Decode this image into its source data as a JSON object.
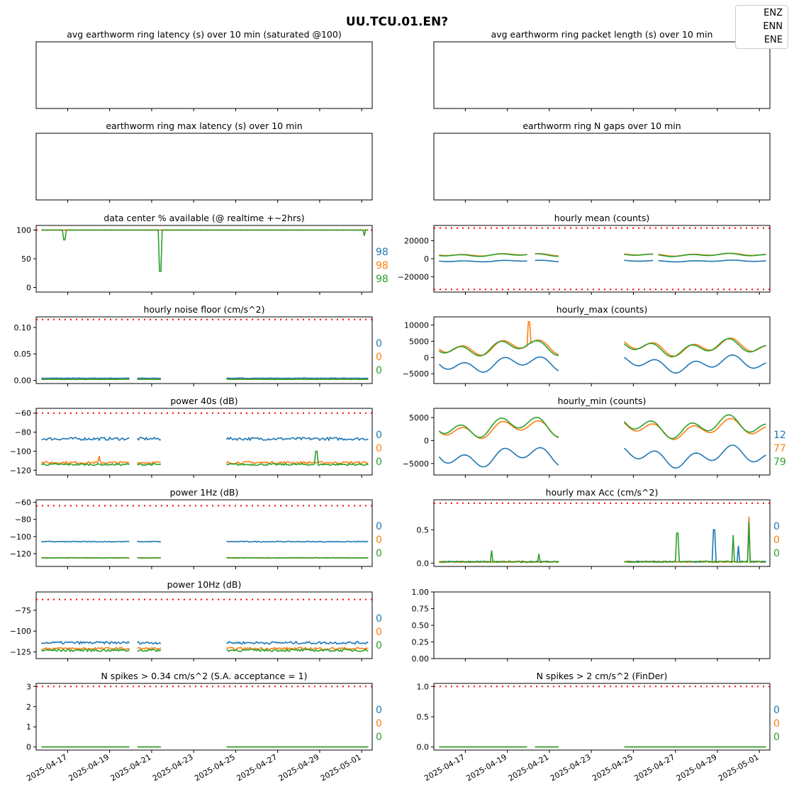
{
  "figure": {
    "title": "UU.TCU.01.EN?"
  },
  "legend": [
    {
      "name": "ENZ",
      "color": "#1f77b4"
    },
    {
      "name": "ENN",
      "color": "#ff7f0e"
    },
    {
      "name": "ENE",
      "color": "#2ca02c"
    }
  ],
  "threshold_color": "#ff0000",
  "x_axis": {
    "domain": [
      "2025-04-15T12:00",
      "2025-05-01T12:00"
    ],
    "ticks": [
      "2025-04-17",
      "2025-04-19",
      "2025-04-21",
      "2025-04-23",
      "2025-04-25",
      "2025-04-27",
      "2025-04-29",
      "2025-05-01"
    ],
    "tick_labels": [
      "2025-04-17",
      "2025-04-19",
      "2025-04-21",
      "2025-04-23",
      "2025-04-25",
      "2025-04-27",
      "2025-04-29",
      "2025-05-01"
    ]
  },
  "chart_data": [
    {
      "id": "avg-latency",
      "type": "line",
      "title": "avg earthworm ring latency (s)   over 10 min (saturated @100)",
      "empty": true,
      "series": [],
      "annotations": []
    },
    {
      "id": "avg-packet-length",
      "type": "line",
      "title": "avg earthworm ring packet length (s)   over 10 min",
      "empty": true,
      "series": [],
      "annotations": []
    },
    {
      "id": "max-latency",
      "type": "line",
      "title": "earthworm ring max latency (s)   over 10 min",
      "empty": true,
      "series": [],
      "annotations": []
    },
    {
      "id": "n-gaps",
      "type": "line",
      "title": "earthworm ring N gaps   over 10 min",
      "empty": true,
      "series": [],
      "annotations": []
    },
    {
      "id": "availability",
      "type": "line",
      "title": "data center % available (@ realtime +~2hrs)",
      "ylim": [
        -8,
        108
      ],
      "yticks": [
        0,
        50,
        100
      ],
      "ytick_labels": [
        "0",
        "50",
        "100"
      ],
      "thresholds": [
        100
      ],
      "annotations": [
        "98",
        "98",
        "98"
      ],
      "gaps": [],
      "series": [
        {
          "channel": "ENZ",
          "base": 100,
          "noise": 0.0,
          "spikes": []
        },
        {
          "channel": "ENN",
          "base": 100,
          "noise": 0.0,
          "spikes": []
        },
        {
          "channel": "ENE",
          "base": 100,
          "noise": 0.0,
          "spikes": [
            [
              "2025-04-16T20:00",
              83
            ],
            [
              "2025-04-21T10:00",
              28
            ],
            [
              "2025-05-01T03:00",
              90
            ]
          ]
        }
      ]
    },
    {
      "id": "hourly-mean",
      "type": "line",
      "title": "hourly mean (counts)",
      "ylim": [
        -37000,
        37000
      ],
      "yticks": [
        -20000,
        0,
        20000
      ],
      "ytick_labels": [
        "−20000",
        "0",
        "20000"
      ],
      "thresholds": [
        34000,
        -34000
      ],
      "annotations": [],
      "gaps": [
        [
          "2025-04-20T00:00",
          "2025-04-20T06:00"
        ],
        [
          "2025-04-21T12:00",
          "2025-04-24T12:00"
        ],
        [
          "2025-04-26T00:00",
          "2025-04-26T04:00"
        ]
      ],
      "series": [
        {
          "channel": "ENZ",
          "base": -2500,
          "amp": 1000,
          "noise": 0,
          "spikes": []
        },
        {
          "channel": "ENN",
          "base": 4500,
          "amp": 1600,
          "noise": 0,
          "spikes": []
        },
        {
          "channel": "ENE",
          "base": 4200,
          "amp": 1800,
          "noise": 0,
          "spikes": []
        }
      ]
    },
    {
      "id": "noise-floor",
      "type": "line",
      "title": "hourly noise floor (cm/s^2)",
      "ylim": [
        -0.006,
        0.12
      ],
      "yticks": [
        0.0,
        0.05,
        0.1
      ],
      "ytick_labels": [
        "0.00",
        "0.05",
        "0.10"
      ],
      "thresholds": [
        0.115
      ],
      "annotations": [
        "0",
        "0",
        "0"
      ],
      "gaps": [
        [
          "2025-04-20T00:00",
          "2025-04-20T06:00"
        ],
        [
          "2025-04-21T12:00",
          "2025-04-24T12:00"
        ]
      ],
      "series": [
        {
          "channel": "ENZ",
          "base": 0.004,
          "noise": 0.0005,
          "spikes": []
        },
        {
          "channel": "ENN",
          "base": 0.002,
          "noise": 0.0004,
          "spikes": []
        },
        {
          "channel": "ENE",
          "base": 0.002,
          "noise": 0.0004,
          "spikes": []
        }
      ]
    },
    {
      "id": "hourly-max",
      "type": "line",
      "title": "hourly_max (counts)",
      "ylim": [
        -8000,
        12500
      ],
      "yticks": [
        -5000,
        0,
        5000,
        10000
      ],
      "ytick_labels": [
        "−5000",
        "0",
        "5000",
        "10000"
      ],
      "thresholds": [],
      "annotations": [],
      "gaps": [
        [
          "2025-04-21T12:00",
          "2025-04-24T12:00"
        ]
      ],
      "series": [
        {
          "channel": "ENZ",
          "base": -2000,
          "amp": 2800,
          "noise": 0,
          "spikes": []
        },
        {
          "channel": "ENN",
          "base": 3200,
          "amp": 2800,
          "noise": 0,
          "spikes": [
            [
              "2025-04-20T01:00",
              11000
            ]
          ]
        },
        {
          "channel": "ENE",
          "base": 3000,
          "amp": 2800,
          "noise": 0,
          "spikes": []
        }
      ]
    },
    {
      "id": "power-40s",
      "type": "line",
      "title": "power 40s (dB)",
      "ylim": [
        -125,
        -55
      ],
      "yticks": [
        -120,
        -100,
        -80,
        -60
      ],
      "ytick_labels": [
        "−120",
        "−100",
        "−80",
        "−60"
      ],
      "thresholds": [
        -60
      ],
      "annotations": [
        "0",
        "0",
        "0"
      ],
      "gaps": [
        [
          "2025-04-20T00:00",
          "2025-04-20T06:00"
        ],
        [
          "2025-04-21T12:00",
          "2025-04-24T12:00"
        ]
      ],
      "series": [
        {
          "channel": "ENZ",
          "base": -87,
          "noise": 1.5,
          "spikes": []
        },
        {
          "channel": "ENN",
          "base": -112,
          "noise": 1.2,
          "spikes": [
            [
              "2025-04-18T12:00",
              -105
            ]
          ]
        },
        {
          "channel": "ENE",
          "base": -114,
          "noise": 1.0,
          "spikes": [
            [
              "2025-04-28T20:00",
              -100
            ]
          ]
        }
      ]
    },
    {
      "id": "hourly-min",
      "type": "line",
      "title": "hourly_min (counts)",
      "ylim": [
        -7500,
        7000
      ],
      "yticks": [
        -5000,
        0,
        5000
      ],
      "ytick_labels": [
        "−5000",
        "0",
        "5000"
      ],
      "thresholds": [],
      "annotations": [
        "12",
        "77",
        "79"
      ],
      "gaps": [
        [
          "2025-04-21T12:00",
          "2025-04-24T12:00"
        ]
      ],
      "series": [
        {
          "channel": "ENZ",
          "base": -3500,
          "amp": 2500,
          "noise": 0,
          "spikes": []
        },
        {
          "channel": "ENN",
          "base": 2500,
          "amp": 2300,
          "noise": 0,
          "spikes": []
        },
        {
          "channel": "ENE",
          "base": 3000,
          "amp": 2600,
          "noise": 0,
          "spikes": []
        }
      ]
    },
    {
      "id": "power-1hz",
      "type": "line",
      "title": "power 1Hz (dB)",
      "ylim": [
        -135,
        -57
      ],
      "yticks": [
        -120,
        -100,
        -80,
        -60
      ],
      "ytick_labels": [
        "−120",
        "−100",
        "−80",
        "−60"
      ],
      "thresholds": [
        -64
      ],
      "annotations": [
        "0",
        "0",
        "0"
      ],
      "gaps": [
        [
          "2025-04-20T00:00",
          "2025-04-20T06:00"
        ],
        [
          "2025-04-21T12:00",
          "2025-04-24T12:00"
        ]
      ],
      "series": [
        {
          "channel": "ENZ",
          "base": -106,
          "noise": 0.5,
          "spikes": []
        },
        {
          "channel": "ENN",
          "base": -125,
          "noise": 0.3,
          "spikes": []
        },
        {
          "channel": "ENE",
          "base": -125,
          "noise": 0.3,
          "spikes": []
        }
      ]
    },
    {
      "id": "max-acc",
      "type": "line",
      "title": "hourly max Acc (cm/s^2)",
      "ylim": [
        -0.05,
        0.95
      ],
      "yticks": [
        0.0,
        0.5
      ],
      "ytick_labels": [
        "0.0",
        "0.5"
      ],
      "thresholds": [
        0.9
      ],
      "annotations": [
        "0",
        "0",
        "0"
      ],
      "gaps": [
        [
          "2025-04-21T12:00",
          "2025-04-24T12:00"
        ]
      ],
      "series": [
        {
          "channel": "ENZ",
          "base": 0.02,
          "noise": 0.01,
          "spikes": [
            [
              "2025-04-28T20:00",
              0.5
            ],
            [
              "2025-04-30T00:00",
              0.26
            ],
            [
              "2025-04-30T12:00",
              0.68
            ]
          ]
        },
        {
          "channel": "ENN",
          "base": 0.02,
          "noise": 0.01,
          "spikes": [
            [
              "2025-04-30T12:00",
              0.7
            ]
          ]
        },
        {
          "channel": "ENE",
          "base": 0.02,
          "noise": 0.01,
          "spikes": [
            [
              "2025-04-18T06:00",
              0.19
            ],
            [
              "2025-04-20T12:00",
              0.14
            ],
            [
              "2025-04-27T02:00",
              0.45
            ],
            [
              "2025-04-29T18:00",
              0.42
            ],
            [
              "2025-04-30T12:00",
              0.62
            ]
          ]
        }
      ]
    },
    {
      "id": "power-10hz",
      "type": "line",
      "title": "power 10Hz (dB)",
      "ylim": [
        -133,
        -53
      ],
      "yticks": [
        -125,
        -100,
        -75
      ],
      "ytick_labels": [
        "−125",
        "−100",
        "−75"
      ],
      "thresholds": [
        -62
      ],
      "annotations": [
        "0",
        "0",
        "0"
      ],
      "gaps": [
        [
          "2025-04-20T00:00",
          "2025-04-20T06:00"
        ],
        [
          "2025-04-21T12:00",
          "2025-04-24T12:00"
        ]
      ],
      "series": [
        {
          "channel": "ENZ",
          "base": -114,
          "noise": 1.5,
          "spikes": []
        },
        {
          "channel": "ENN",
          "base": -121,
          "noise": 1.5,
          "spikes": []
        },
        {
          "channel": "ENE",
          "base": -123,
          "noise": 1.5,
          "spikes": []
        }
      ]
    },
    {
      "id": "blank-axes",
      "type": "line",
      "title": "",
      "ylim": [
        0,
        1
      ],
      "yticks": [
        0,
        0.25,
        0.5,
        0.75,
        1.0
      ],
      "ytick_labels": [
        "0.00",
        "0.25",
        "0.50",
        "0.75",
        "1.00"
      ],
      "linear_x": true,
      "empty": true,
      "series": [],
      "annotations": []
    },
    {
      "id": "spikes-sa",
      "type": "line",
      "title": "N spikes > 0.34 cm/s^2 (S.A. acceptance = 1)",
      "ylim": [
        -0.15,
        3.15
      ],
      "yticks": [
        0,
        1,
        2,
        3
      ],
      "ytick_labels": [
        "0",
        "1",
        "2",
        "3"
      ],
      "thresholds": [
        3
      ],
      "annotations": [
        "0",
        "0",
        "0"
      ],
      "gaps": [
        [
          "2025-04-20T00:00",
          "2025-04-20T06:00"
        ],
        [
          "2025-04-21T12:00",
          "2025-04-24T12:00"
        ]
      ],
      "series": [
        {
          "channel": "ENZ",
          "base": 0,
          "noise": 0,
          "spikes": []
        },
        {
          "channel": "ENN",
          "base": 0,
          "noise": 0,
          "spikes": []
        },
        {
          "channel": "ENE",
          "base": 0,
          "noise": 0,
          "spikes": []
        }
      ]
    },
    {
      "id": "spikes-finder",
      "type": "line",
      "title": "N spikes > 2 cm/s^2 (FinDer)",
      "ylim": [
        -0.05,
        1.05
      ],
      "yticks": [
        0.0,
        0.5,
        1.0
      ],
      "ytick_labels": [
        "0.0",
        "0.5",
        "1.0"
      ],
      "thresholds": [
        1
      ],
      "annotations": [
        "0",
        "0",
        "0"
      ],
      "gaps": [
        [
          "2025-04-20T00:00",
          "2025-04-20T06:00"
        ],
        [
          "2025-04-21T12:00",
          "2025-04-24T12:00"
        ]
      ],
      "series": [
        {
          "channel": "ENZ",
          "base": 0,
          "noise": 0,
          "spikes": []
        },
        {
          "channel": "ENN",
          "base": 0,
          "noise": 0,
          "spikes": []
        },
        {
          "channel": "ENE",
          "base": 0,
          "noise": 0,
          "spikes": []
        }
      ]
    }
  ]
}
